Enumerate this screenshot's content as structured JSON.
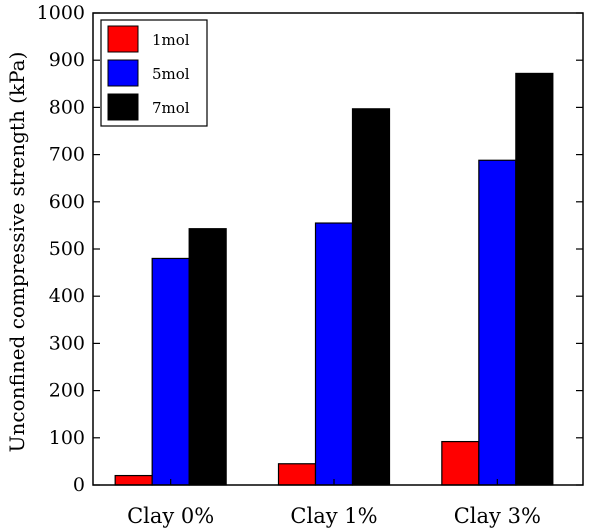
{
  "chart_data": {
    "type": "bar",
    "title": "",
    "xlabel": "",
    "ylabel": "Unconfined compressive strength (kPa)",
    "ylim": [
      0,
      1000
    ],
    "yticks": [
      "0",
      "100",
      "200",
      "300",
      "400",
      "500",
      "600",
      "700",
      "800",
      "900",
      "1000"
    ],
    "categories": [
      "Clay 0%",
      "Clay 1%",
      "Clay 3%"
    ],
    "series": [
      {
        "name": "1mol",
        "color": "#ff0000",
        "values": [
          20,
          45,
          92
        ]
      },
      {
        "name": "5mol",
        "color": "#0000ff",
        "values": [
          480,
          555,
          688
        ]
      },
      {
        "name": "7mol",
        "color": "#000000",
        "values": [
          543,
          797,
          872
        ]
      }
    ],
    "legend_position": "top-left",
    "grid": false
  }
}
